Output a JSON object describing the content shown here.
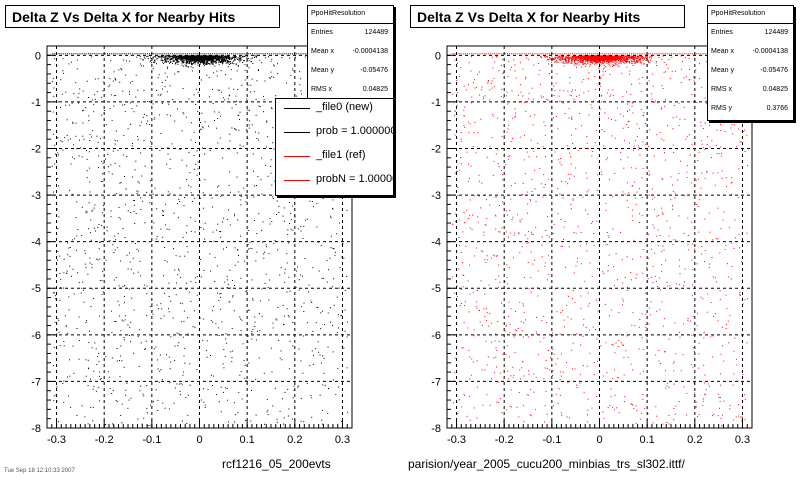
{
  "pads": [
    {
      "title": "Delta Z Vs Delta X for Nearby Hits",
      "stats": {
        "name": "PpoHitResolution",
        "rows": [
          {
            "key": "Entries",
            "value": "124489"
          },
          {
            "key": "Mean x",
            "value": "-0.0004138"
          },
          {
            "key": "Mean y",
            "value": "-0.05476"
          },
          {
            "key": "RMS x",
            "value": "0.04825"
          },
          {
            "key": "RMS y",
            "value": "0.3766"
          }
        ]
      },
      "bottom_label": "rcf1216_05_200evts"
    },
    {
      "title": "Delta Z Vs Delta X for Nearby Hits",
      "stats": {
        "name": "PpoHitResolution",
        "rows": [
          {
            "key": "Entries",
            "value": "124489"
          },
          {
            "key": "Mean x",
            "value": "-0.0004138"
          },
          {
            "key": "Mean y",
            "value": "-0.05476"
          },
          {
            "key": "RMS x",
            "value": "0.04825"
          },
          {
            "key": "RMS y",
            "value": "0.3766"
          }
        ]
      },
      "bottom_label": "parision/year_2005_cucu200_minbias_trs_sl302.ittf/"
    }
  ],
  "legend": [
    {
      "label": "_file0 (new)",
      "color": "#000000"
    },
    {
      "label": "prob = 1.000000",
      "color": "#000000"
    },
    {
      "label": "_file1 (ref)",
      "color": "#ff0000"
    },
    {
      "label": "probN = 1.000000",
      "color": "#ff0000"
    }
  ],
  "date_label": "Tue Sep 18 12:10:33 2007",
  "chart_data": [
    {
      "type": "scatter",
      "title": "Delta Z Vs Delta X for Nearby Hits",
      "series": [
        {
          "name": "_file0 (new)",
          "color": "#000000",
          "entries": 124489,
          "mean_x": -0.0004138,
          "mean_y": -0.05476,
          "rms_x": 0.04825,
          "rms_y": 0.3766
        }
      ],
      "xlim": [
        -0.32,
        0.32
      ],
      "ylim": [
        -8,
        0.2
      ],
      "x_ticks": [
        -0.3,
        -0.2,
        -0.1,
        0,
        0.1,
        0.2,
        0.3
      ],
      "x_tick_labels": [
        "-0.3",
        "-0.2",
        "-0.1",
        "0",
        "0.1",
        "0.2",
        "0.3"
      ],
      "y_ticks": [
        0,
        -1,
        -2,
        -3,
        -4,
        -5,
        -6,
        -7,
        -8
      ],
      "y_tick_labels": [
        "0",
        "-1",
        "-2",
        "-3",
        "-4",
        "-5",
        "-6",
        "-7",
        "-8"
      ],
      "dense_region": {
        "x": [
          -0.03,
          0.03
        ],
        "y": [
          -0.07,
          0
        ]
      },
      "grid": true,
      "legend": "top-right"
    },
    {
      "type": "scatter",
      "title": "Delta Z Vs Delta X for Nearby Hits",
      "series": [
        {
          "name": "_file1 (ref)",
          "color": "#ff0000",
          "entries": 124489,
          "mean_x": -0.0004138,
          "mean_y": -0.05476,
          "rms_x": 0.04825,
          "rms_y": 0.3766
        }
      ],
      "xlim": [
        -0.32,
        0.32
      ],
      "ylim": [
        -8,
        0.2
      ],
      "x_ticks": [
        -0.3,
        -0.2,
        -0.1,
        0,
        0.1,
        0.2,
        0.3
      ],
      "x_tick_labels": [
        "-0.3",
        "-0.2",
        "-0.1",
        "0",
        "0.1",
        "0.2",
        "0.3"
      ],
      "y_ticks": [
        0,
        -1,
        -2,
        -3,
        -4,
        -5,
        -6,
        -7,
        -8
      ],
      "y_tick_labels": [
        "0",
        "-1",
        "-2",
        "-3",
        "-4",
        "-5",
        "-6",
        "-7",
        "-8"
      ],
      "dense_region": {
        "x": [
          -0.03,
          0.03
        ],
        "y": [
          -0.07,
          0
        ]
      },
      "grid": true,
      "legend": "none"
    }
  ]
}
